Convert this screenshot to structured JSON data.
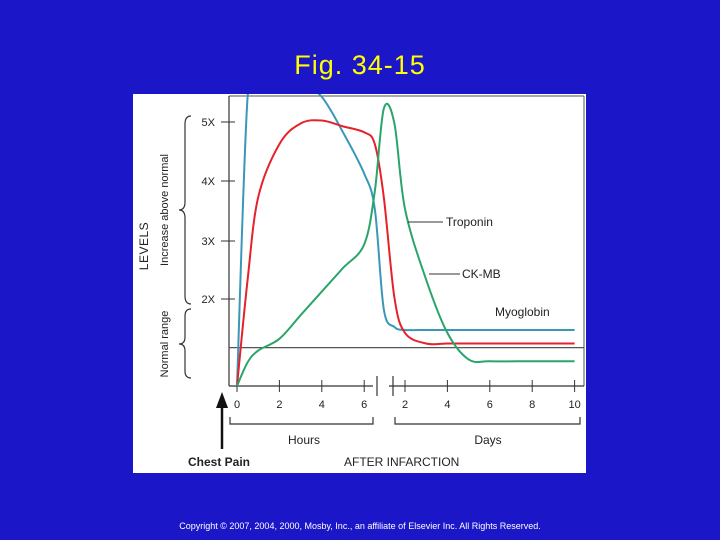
{
  "slide": {
    "title": "Fig. 34-15",
    "copyright": "Copyright © 2007, 2004, 2000, Mosby, Inc., an affiliate of Elsevier Inc. All Rights Reserved.",
    "background": "#1b16c8",
    "title_color": "#ffff00"
  },
  "chart_data": {
    "type": "line",
    "ylabel": "LEVELS",
    "ylabel_upper": "Increase above normal",
    "ylabel_lower": "Normal range",
    "y_ticks": [
      "5X",
      "4X",
      "3X",
      "2X"
    ],
    "y_tick_values": [
      5,
      4,
      3,
      2
    ],
    "ylim": [
      0,
      5.3
    ],
    "x_ticks_hours": [
      "0",
      "2",
      "4",
      "6"
    ],
    "x_ticks_days": [
      "2",
      "4",
      "6",
      "8",
      "10"
    ],
    "x_group_hours": "Hours",
    "x_group_days": "Days",
    "xlabel": "AFTER INFARCTION",
    "event_label": "Chest Pain",
    "x_positions": [
      "0 h",
      "0.5 h",
      "1 h",
      "2 h",
      "3 h",
      "4 h",
      "5 h",
      "6 h",
      "6.5 h",
      "1 d",
      "1.5 d",
      "2 d",
      "3 d",
      "4 d",
      "5 d",
      "6 d",
      "8 d",
      "10 d"
    ],
    "series": [
      {
        "name": "Myoglobin",
        "color": "#3a97b8",
        "values": [
          0,
          4.9,
          5.1,
          5.23,
          5.15,
          4.9,
          4.3,
          3.6,
          3.0,
          1.3,
          1.0,
          0.95,
          0.95,
          0.95,
          0.95,
          0.95,
          0.95,
          0.95
        ]
      },
      {
        "name": "Troponin",
        "color": "#e5222b",
        "values": [
          0,
          1.8,
          3.2,
          4.1,
          4.45,
          4.5,
          4.4,
          4.3,
          4.1,
          3.2,
          1.5,
          0.9,
          0.72,
          0.72,
          0.72,
          0.72,
          0.72,
          0.72
        ]
      },
      {
        "name": "CK-MB",
        "color": "#2aa56a",
        "values": [
          0,
          0.4,
          0.6,
          0.8,
          1.2,
          1.6,
          2.0,
          2.4,
          3.3,
          4.7,
          4.45,
          3.0,
          1.8,
          0.9,
          0.45,
          0.42,
          0.42,
          0.42
        ]
      }
    ],
    "normal_baseline": 0.65,
    "grid": false,
    "legend": "inline labels right"
  }
}
